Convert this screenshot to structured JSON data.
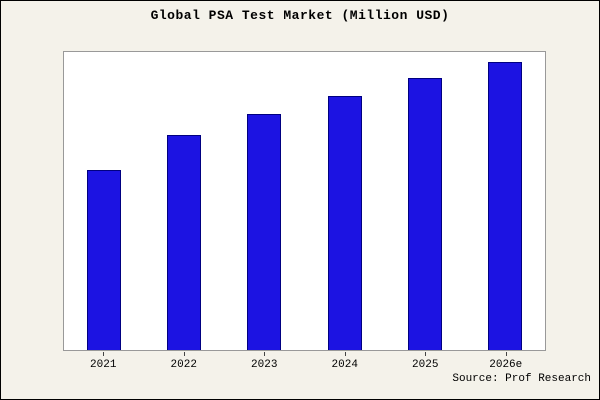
{
  "frame": {
    "source": "Source: Prof Research"
  },
  "chart_data": {
    "type": "bar",
    "title": "Global PSA Test Market (Million USD)",
    "categories": [
      "2021",
      "2022",
      "2023",
      "2024",
      "2025",
      "2026e"
    ],
    "values": [
      187,
      224,
      246,
      264,
      283,
      300
    ],
    "xlabel": "",
    "ylabel": "",
    "ylim": [
      0,
      310
    ],
    "grid": false,
    "legend": false,
    "bar_color": "#1c13e2",
    "bar_edge_color": "#000080",
    "background_color": "#f4f2ea",
    "plot_background_color": "#ffffff",
    "value_note": "y-axis has no visible scale; values are relative estimates"
  }
}
